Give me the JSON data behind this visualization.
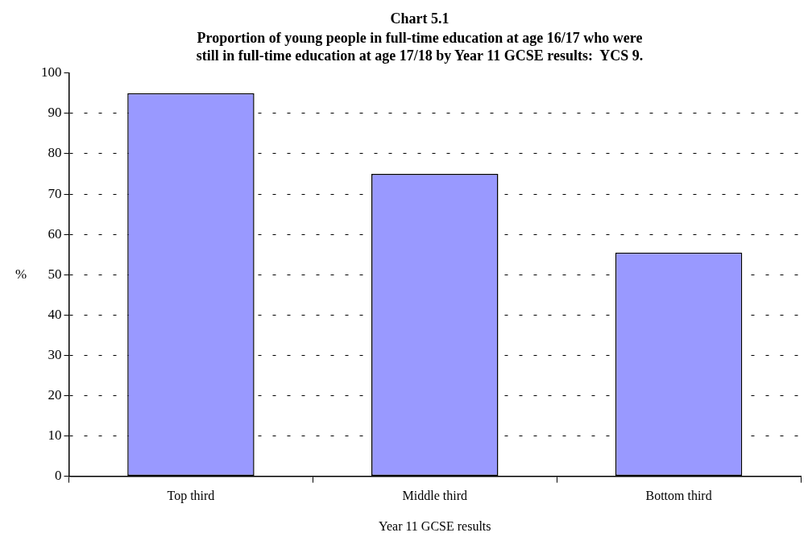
{
  "chart_data": {
    "type": "bar",
    "title": "Chart 5.1",
    "subtitle": "Proportion of young people in full-time education at age 16/17 who were still in full-time education at age 17/18 by Year 11 GCSE results:  YCS 9.",
    "xlabel": "Year 11 GCSE results",
    "ylabel": "%",
    "categories": [
      "Top third",
      "Middle third",
      "Bottom third"
    ],
    "values": [
      95,
      75,
      55.5
    ],
    "color": "#9999ff",
    "ylim": [
      0,
      100
    ],
    "yticks": [
      0,
      10,
      20,
      30,
      40,
      50,
      60,
      70,
      80,
      90,
      100
    ],
    "grid": "y",
    "legend": false
  }
}
